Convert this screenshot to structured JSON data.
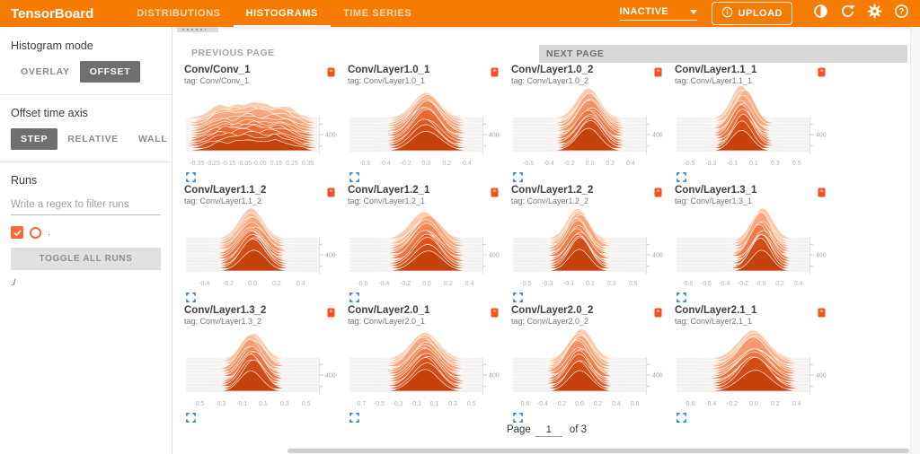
{
  "header": {
    "brand": "TensorBoard",
    "accent_color": "#f57c00",
    "tabs": [
      {
        "label": "DISTRIBUTIONS",
        "active": false
      },
      {
        "label": "HISTOGRAMS",
        "active": true
      },
      {
        "label": "TIME SERIES",
        "active": false
      }
    ],
    "status_dropdown": {
      "value": "INACTIVE"
    },
    "upload_label": "UPLOAD",
    "icons": [
      "contrast-icon",
      "refresh-icon",
      "settings-icon",
      "help-icon"
    ]
  },
  "sidebar": {
    "histogram_mode": {
      "label": "Histogram mode",
      "options": [
        "OVERLAY",
        "OFFSET"
      ],
      "selected": "OFFSET"
    },
    "offset_time_axis": {
      "label": "Offset time axis",
      "options": [
        "STEP",
        "RELATIVE",
        "WALL"
      ],
      "selected": "STEP"
    },
    "runs": {
      "label": "Runs",
      "filter_placeholder": "Write a regex to filter runs",
      "items": [
        {
          "name": ".",
          "checked": true,
          "color": "#f4683c"
        }
      ],
      "toggle_all_label": "TOGGLE ALL RUNS",
      "footer_text": "./"
    }
  },
  "main": {
    "prev_page_label": "PREVIOUS PAGE",
    "next_page_label": "NEXT PAGE",
    "pagination": {
      "page_label": "Page",
      "current_page": "1",
      "of_label": "of 3"
    }
  },
  "chart_data": {
    "type": "histogram-ridgeline",
    "histogram_mode": "offset",
    "offset_axis": "step",
    "layers": 14,
    "palette": {
      "front": "#c5420c",
      "mid": "#f4854f",
      "back": "#fcc7a6"
    },
    "y_axis_side": "right",
    "cards": [
      {
        "title": "Conv/Conv_1",
        "tag": "tag: Conv/Conv_1",
        "shape": "noisy",
        "x_range": [
          -0.42,
          0.42
        ],
        "spread": 0.3,
        "amp": 19,
        "x_ticks": [
          "-0.35",
          "-0.25",
          "-0.15",
          "-0.05",
          "0.05",
          "0.15",
          "0.25",
          "0.35"
        ],
        "y_right_label": "400"
      },
      {
        "title": "Conv/Layer1.0_1",
        "tag": "tag: Conv/Layer1.0_1",
        "shape": "bell",
        "x_range": [
          -0.75,
          0.55
        ],
        "spread": 0.105,
        "amp": 31,
        "x_ticks": [
          "-0.6",
          "-0.4",
          "-0.2",
          "0.0",
          "0.2",
          "0.4"
        ],
        "y_right_label": "400"
      },
      {
        "title": "Conv/Layer1.0_2",
        "tag": "tag: Conv/Layer1.0_2",
        "shape": "bell",
        "x_range": [
          -0.75,
          0.55
        ],
        "spread": 0.09,
        "amp": 32,
        "x_ticks": [
          "-0.6",
          "-0.4",
          "-0.2",
          "0.0",
          "0.2",
          "0.4"
        ],
        "y_right_label": "400"
      },
      {
        "title": "Conv/Layer1.1_1",
        "tag": "tag: Conv/Layer1.1_1",
        "shape": "bell",
        "x_range": [
          -0.62,
          0.62
        ],
        "spread": 0.075,
        "amp": 33,
        "x_ticks": [
          "-0.5",
          "-0.3",
          "-0.1",
          "0.1",
          "0.3",
          "0.5"
        ],
        "y_right_label": "400"
      },
      {
        "title": "Conv/Layer1.1_2",
        "tag": "tag: Conv/Layer1.1_2",
        "shape": "bell",
        "x_range": [
          -0.55,
          0.55
        ],
        "spread": 0.09,
        "amp": 32,
        "x_ticks": [
          "-0.4",
          "-0.2",
          "0.0",
          "0.2",
          "0.4"
        ],
        "y_right_label": "400"
      },
      {
        "title": "Conv/Layer1.2_1",
        "tag": "tag: Conv/Layer1.2_1",
        "shape": "bell",
        "x_range": [
          -0.72,
          0.52
        ],
        "spread": 0.1,
        "amp": 32,
        "x_ticks": [
          "-0.6",
          "-0.4",
          "-0.2",
          "0.0",
          "0.2",
          "0.4"
        ],
        "y_right_label": "400"
      },
      {
        "title": "Conv/Layer1.2_2",
        "tag": "tag: Conv/Layer1.2_2",
        "shape": "bell",
        "x_range": [
          -0.62,
          0.62
        ],
        "spread": 0.08,
        "amp": 32,
        "x_ticks": [
          "-0.5",
          "-0.3",
          "-0.1",
          "0.1",
          "0.3",
          "0.5"
        ],
        "y_right_label": "400"
      },
      {
        "title": "Conv/Layer1.3_1",
        "tag": "tag: Conv/Layer1.3_1",
        "shape": "bell",
        "x_range": [
          -0.92,
          0.52
        ],
        "spread": 0.075,
        "amp": 33,
        "x_ticks": [
          "-0.8",
          "-0.6",
          "-0.4",
          "-0.2",
          "0.0",
          "0.2",
          "0.4"
        ],
        "y_right_label": "400"
      },
      {
        "title": "Conv/Layer1.3_2",
        "tag": "tag: Conv/Layer1.3_2",
        "shape": "bell",
        "x_range": [
          -0.62,
          0.62
        ],
        "spread": 0.08,
        "amp": 32,
        "x_ticks": [
          "-0.5",
          "-0.3",
          "-0.1",
          "0.1",
          "0.3",
          "0.5"
        ],
        "y_right_label": "400"
      },
      {
        "title": "Conv/Layer2.0_1",
        "tag": "tag: Conv/Layer2.0_1",
        "shape": "bell",
        "x_range": [
          -0.82,
          0.62
        ],
        "spread": 0.1,
        "amp": 32,
        "x_ticks": [
          "-0.7",
          "-0.5",
          "-0.3",
          "-0.1",
          "0.1",
          "0.3",
          "0.5"
        ],
        "y_right_label": "400"
      },
      {
        "title": "Conv/Layer2.0_2",
        "tag": "tag: Conv/Layer2.0_2",
        "shape": "bell",
        "x_range": [
          -0.72,
          0.72
        ],
        "spread": 0.085,
        "amp": 32,
        "x_ticks": [
          "-0.6",
          "-0.4",
          "-0.2",
          "0.0",
          "0.2",
          "0.4",
          "0.6"
        ],
        "y_right_label": "400"
      },
      {
        "title": "Conv/Layer2.1_1",
        "tag": "tag: Conv/Layer2.1_1",
        "shape": "bell",
        "x_range": [
          -0.72,
          0.52
        ],
        "spread": 0.115,
        "amp": 31,
        "x_ticks": [
          "-0.6",
          "-0.4",
          "-0.2",
          "0.0",
          "0.2",
          "0.4"
        ],
        "y_right_label": "400"
      }
    ]
  }
}
